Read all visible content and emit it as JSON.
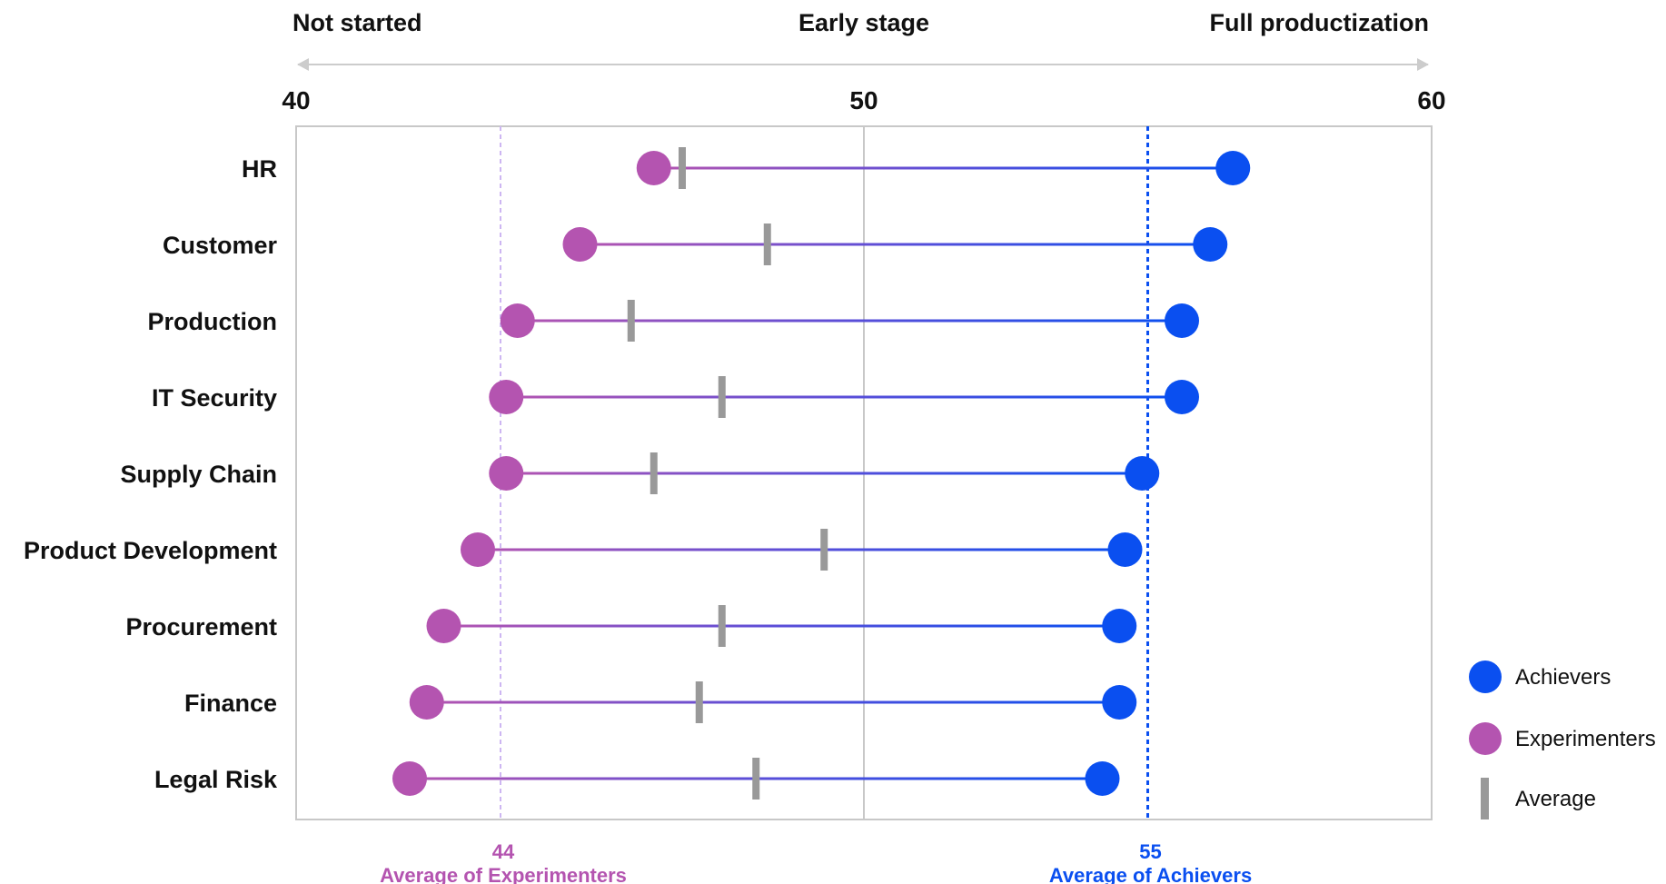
{
  "chart_data": {
    "type": "dumbbell",
    "scale_labels": {
      "left": "Not started",
      "center": "Early stage",
      "right": "Full productization"
    },
    "xlim": [
      40,
      60
    ],
    "x_ticks": [
      "40",
      "50",
      "60"
    ],
    "categories": [
      "HR",
      "Customer",
      "Production",
      "IT Security",
      "Supply Chain",
      "Product Development",
      "Procurement",
      "Finance",
      "Legal Risk"
    ],
    "series": [
      {
        "name": "Experimenters",
        "color": "#b454b0",
        "values": [
          46.3,
          45.0,
          43.9,
          43.7,
          43.7,
          43.2,
          42.6,
          42.3,
          42.0
        ]
      },
      {
        "name": "Average",
        "color": "#999999",
        "values": [
          46.8,
          48.3,
          45.9,
          47.5,
          46.3,
          49.3,
          47.5,
          47.1,
          48.1
        ]
      },
      {
        "name": "Achievers",
        "color": "#0a4ff0",
        "values": [
          56.5,
          56.1,
          55.6,
          55.6,
          54.9,
          54.6,
          54.5,
          54.5,
          54.2
        ]
      }
    ],
    "reference_lines": [
      {
        "value_label": "44",
        "value": 43.6,
        "label": "Average of Experimenters",
        "color": "#b454b0",
        "line_color": "#cdb6f2"
      },
      {
        "value_label": "55",
        "value": 55.0,
        "label": "Average of Achievers",
        "color": "#0a4ff0",
        "line_color": "#0a4ff0"
      }
    ],
    "center_line": 50,
    "legend": {
      "position": "bottom-right",
      "items": [
        {
          "label": "Achievers",
          "marker": "circle",
          "color": "#0a4ff0"
        },
        {
          "label": "Experimenters",
          "marker": "circle",
          "color": "#b454b0"
        },
        {
          "label": "Average",
          "marker": "bar",
          "color": "#999999"
        }
      ]
    },
    "grid": false
  }
}
